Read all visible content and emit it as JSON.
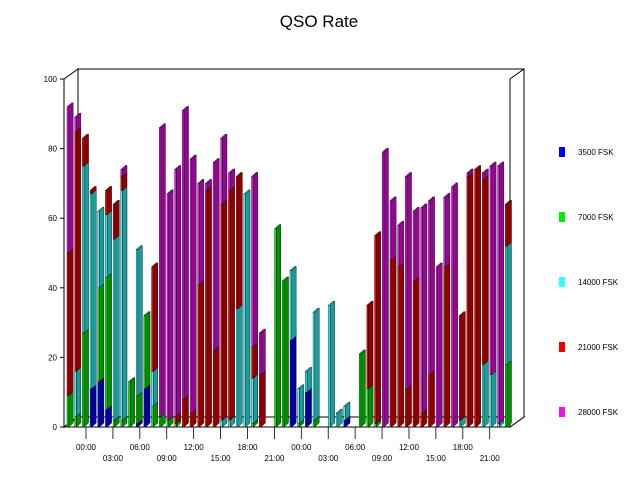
{
  "chart_data": {
    "type": "bar",
    "stacked": true,
    "three_d": true,
    "title": "QSO Rate",
    "ylim": [
      0,
      100
    ],
    "yticks": [
      "0",
      "20",
      "40",
      "60",
      "80",
      "100"
    ],
    "xtick_labels_row1": [
      "00:00",
      "06:00",
      "12:00",
      "18:00",
      "00:00",
      "06:00",
      "12:00",
      "18:00"
    ],
    "xtick_labels_row2": [
      "03:00",
      "09:00",
      "15:00",
      "21:00",
      "03:00",
      "09:00",
      "15:00",
      "21:00"
    ],
    "legend_position": "right",
    "series": [
      {
        "name": "3500 FSK",
        "color": "#0000ff",
        "values": [
          0,
          0,
          0,
          11,
          13,
          5,
          0,
          0,
          0,
          1,
          11,
          0,
          0,
          0,
          0,
          0,
          0,
          0,
          0,
          0,
          0,
          0,
          0,
          0,
          0,
          0,
          0,
          0,
          0,
          25,
          0,
          10,
          0,
          0,
          0,
          0,
          2,
          0,
          0,
          0,
          0,
          0,
          0,
          0,
          0,
          0,
          0,
          0,
          0,
          0,
          0,
          0,
          0,
          0,
          0,
          0,
          0,
          0
        ]
      },
      {
        "name": "7000 FSK",
        "color": "#00ee00",
        "values": [
          9,
          3,
          27,
          0,
          27,
          38,
          2,
          2,
          13,
          8,
          21,
          6,
          3,
          2,
          1,
          0,
          0,
          0,
          0,
          0,
          0,
          0,
          0,
          0,
          1,
          0,
          0,
          57,
          42,
          0,
          1,
          0,
          2,
          0,
          0,
          0,
          0,
          0,
          21,
          11,
          1,
          0,
          0,
          0,
          0,
          0,
          0,
          0,
          0,
          0,
          0,
          0,
          0,
          0,
          0,
          0,
          0,
          18
        ]
      },
      {
        "name": "14000 FSK",
        "color": "#33ffff",
        "values": [
          0,
          13,
          48,
          56,
          22,
          18,
          52,
          66,
          0,
          42,
          0,
          10,
          0,
          0,
          0,
          0,
          0,
          0,
          0,
          0,
          2,
          2,
          34,
          67,
          13,
          0,
          0,
          0,
          0,
          20,
          10,
          6,
          31,
          0,
          35,
          4,
          4,
          0,
          0,
          0,
          0,
          0,
          0,
          0,
          0,
          0,
          0,
          0,
          0,
          0,
          0,
          2,
          0,
          0,
          18,
          15,
          1,
          34
        ]
      },
      {
        "name": "21000 FSK",
        "color": "#ee0000",
        "values": [
          41,
          69,
          8,
          1,
          0,
          7,
          10,
          4,
          0,
          0,
          0,
          30,
          0,
          0,
          2,
          8,
          4,
          41,
          68,
          22,
          62,
          66,
          38,
          0,
          9,
          15,
          0,
          0,
          0,
          0,
          0,
          0,
          0,
          0,
          0,
          0,
          0,
          0,
          0,
          24,
          54,
          0,
          48,
          46,
          11,
          42,
          4,
          15,
          0,
          46,
          0,
          30,
          72,
          74,
          53,
          0,
          0,
          12
        ]
      },
      {
        "name": "28000 FSK",
        "color": "#ee11ee",
        "values": [
          42,
          4,
          0,
          0,
          0,
          0,
          0,
          2,
          0,
          0,
          0,
          0,
          83,
          65,
          71,
          83,
          73,
          29,
          2,
          54,
          19,
          5,
          0,
          0,
          49,
          12,
          0,
          0,
          0,
          0,
          0,
          0,
          0,
          0,
          0,
          0,
          0,
          0,
          0,
          0,
          0,
          79,
          17,
          12,
          61,
          20,
          59,
          50,
          46,
          20,
          69,
          0,
          1,
          0,
          2,
          60,
          74,
          0
        ]
      }
    ]
  }
}
